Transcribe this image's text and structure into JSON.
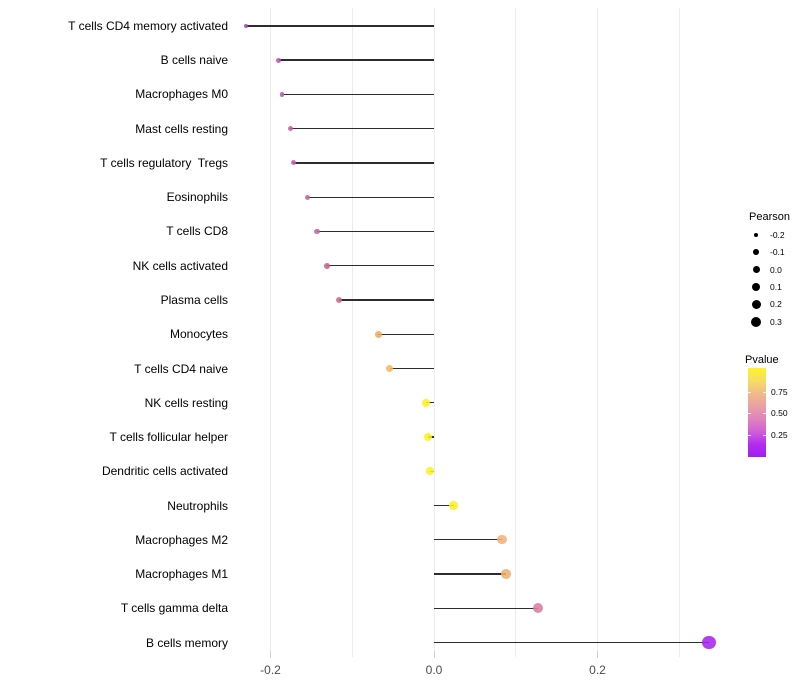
{
  "chart_data": {
    "type": "scatter",
    "subtype": "lollipop",
    "title": "",
    "xlabel": "",
    "ylabel": "",
    "xlim": [
      -0.26,
      0.37
    ],
    "grid_on": true,
    "grid_x": [
      -0.2,
      -0.1,
      0.0,
      0.1,
      0.2,
      0.3
    ],
    "x_ticks": [
      {
        "value": -0.2,
        "label": "-0.2"
      },
      {
        "value": 0.0,
        "label": "0.0"
      },
      {
        "value": 0.2,
        "label": "0.2"
      }
    ],
    "points": [
      {
        "label": "T cells CD4 memory activated",
        "pearson": -0.23,
        "color": "#A64AAE",
        "size": 4.1
      },
      {
        "label": "B cells naive",
        "pearson": -0.19,
        "color": "#BB57AE",
        "size": 4.8
      },
      {
        "label": "Macrophages M0",
        "pearson": -0.186,
        "color": "#BD59AC",
        "size": 4.8
      },
      {
        "label": "Mast cells resting",
        "pearson": -0.176,
        "color": "#BF5EAA",
        "size": 5.0
      },
      {
        "label": "T cells regulatory  Tregs",
        "pearson": -0.172,
        "color": "#C263B0",
        "size": 5.1
      },
      {
        "label": "Eosinophils",
        "pearson": -0.155,
        "color": "#C365A6",
        "size": 5.4
      },
      {
        "label": "T cells CD8",
        "pearson": -0.143,
        "color": "#C4659C",
        "size": 5.6
      },
      {
        "label": "NK cells activated",
        "pearson": -0.131,
        "color": "#C66192",
        "size": 5.8
      },
      {
        "label": "Plasma cells",
        "pearson": -0.116,
        "color": "#CE6E81",
        "size": 6.0
      },
      {
        "label": "Monocytes",
        "pearson": -0.068,
        "color": "#EFAD5E",
        "size": 6.8
      },
      {
        "label": "T cells CD4 naive",
        "pearson": -0.054,
        "color": "#F1BC56",
        "size": 7.1
      },
      {
        "label": "NK cells resting",
        "pearson": -0.01,
        "color": "#FBF31F",
        "size": 7.8
      },
      {
        "label": "T cells follicular helper",
        "pearson": -0.007,
        "color": "#FBF31F",
        "size": 7.9
      },
      {
        "label": "Dendritic cells activated",
        "pearson": -0.005,
        "color": "#FBF31F",
        "size": 7.9
      },
      {
        "label": "Neutrophils",
        "pearson": 0.024,
        "color": "#FBF122",
        "size": 8.4
      },
      {
        "label": "Macrophages M2",
        "pearson": 0.083,
        "color": "#F1B377",
        "size": 9.4
      },
      {
        "label": "Macrophages M1",
        "pearson": 0.088,
        "color": "#F0B074",
        "size": 9.5
      },
      {
        "label": "T cells gamma delta",
        "pearson": 0.127,
        "color": "#DA7E9E",
        "size": 10.2
      },
      {
        "label": "B cells memory",
        "pearson": 0.336,
        "color": "#A826EE",
        "size": 13.7
      }
    ],
    "legend_pearson": {
      "title": "Pearson",
      "items": [
        {
          "label": "-0.2",
          "size": 4.3
        },
        {
          "label": "-0.1",
          "size": 5.7
        },
        {
          "label": "0.0",
          "size": 7.0
        },
        {
          "label": "0.1",
          "size": 8.0
        },
        {
          "label": "0.2",
          "size": 9.0
        },
        {
          "label": "0.3",
          "size": 10.0
        }
      ]
    },
    "legend_pvalue": {
      "title": "Pvalue",
      "ticks": [
        "0.75",
        "0.50",
        "0.25"
      ],
      "gradient_top_to_bottom": [
        "#FCF42C",
        "#F7DD63",
        "#F0BC88",
        "#E9A0A4",
        "#E083BE",
        "#D060D8",
        "#B32CF0",
        "#A21EF2"
      ]
    },
    "style_colors": {
      "stem": "#2d2d2d",
      "gridline": "#ececec",
      "axis_text": "#4d4d4d"
    }
  }
}
